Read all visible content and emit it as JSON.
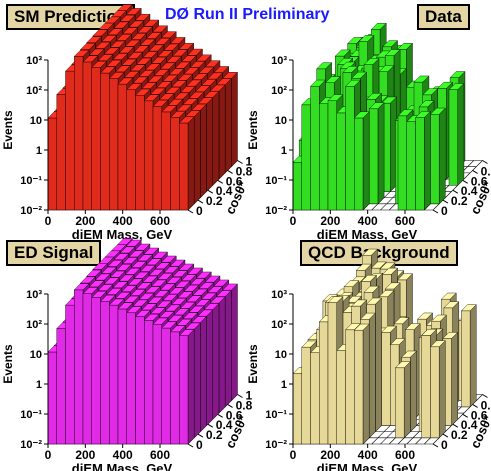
{
  "header": {
    "banner": "DØ Run II Preliminary"
  },
  "axis_text": {
    "z_label": "Events",
    "x_label": "diEM Mass, GeV",
    "y_label": "cosθ*",
    "z_ticks": [
      "10⁻²",
      "10⁻¹",
      "1",
      "10",
      "10²",
      "10³"
    ],
    "x_ticks": [
      "0",
      "200",
      "400",
      "600"
    ],
    "y_ticks": [
      "0",
      "0.2",
      "0.4",
      "0.6",
      "0.8",
      "1"
    ]
  },
  "chart_data": [
    {
      "type": "heatmap",
      "title": "SM Prediction",
      "color": "#e02a1c",
      "xlabel": "diEM Mass, GeV",
      "ylabel": "cosθ*",
      "zlabel": "Events",
      "xlim": [
        0,
        750
      ],
      "ylim": [
        0,
        1
      ],
      "zlim": [
        0.01,
        1000
      ],
      "zscale": "log",
      "x_ticks": [
        0,
        200,
        400,
        600
      ],
      "y_ticks": [
        0,
        0.2,
        0.4,
        0.6,
        0.8,
        1
      ],
      "x_peak": 150,
      "z_peak": 1500,
      "shape": "smooth-falling"
    },
    {
      "type": "heatmap",
      "title": "Data",
      "color": "#33dd22",
      "xlabel": "diEM Mass, GeV",
      "ylabel": "cosθ*",
      "zlabel": "Events",
      "xlim": [
        0,
        750
      ],
      "ylim": [
        0,
        1
      ],
      "zlim": [
        0.01,
        1000
      ],
      "zscale": "log",
      "x_ticks": [
        0,
        200,
        400,
        600
      ],
      "y_ticks": [
        0,
        0.2,
        0.4,
        0.6,
        0.8,
        1
      ],
      "x_peak": 150,
      "z_peak": 200,
      "shape": "sparse-fluctuating"
    },
    {
      "type": "heatmap",
      "title": "ED Signal",
      "color": "#e02ae6",
      "xlabel": "diEM Mass, GeV",
      "ylabel": "cosθ*",
      "zlabel": "Events",
      "xlim": [
        0,
        750
      ],
      "ylim": [
        0,
        1
      ],
      "zlim": [
        0.01,
        1000
      ],
      "zscale": "log",
      "x_ticks": [
        0,
        200,
        400,
        600
      ],
      "y_ticks": [
        0,
        0.2,
        0.4,
        0.6,
        0.8,
        1
      ],
      "x_peak": 150,
      "z_peak": 1500,
      "shape": "smooth-falling-broad"
    },
    {
      "type": "heatmap",
      "title": "QCD Background",
      "color": "#e6d896",
      "xlabel": "diEM Mass, GeV",
      "ylabel": "cosθ*",
      "zlabel": "Events",
      "xlim": [
        0,
        750
      ],
      "ylim": [
        0,
        1
      ],
      "zlim": [
        0.01,
        1000
      ],
      "zscale": "log",
      "x_ticks": [
        0,
        200,
        400,
        600
      ],
      "y_ticks": [
        0,
        0.2,
        0.4,
        0.6,
        0.8,
        1
      ],
      "x_peak": 150,
      "z_peak": 200,
      "shape": "sparse-fluctuating"
    }
  ]
}
